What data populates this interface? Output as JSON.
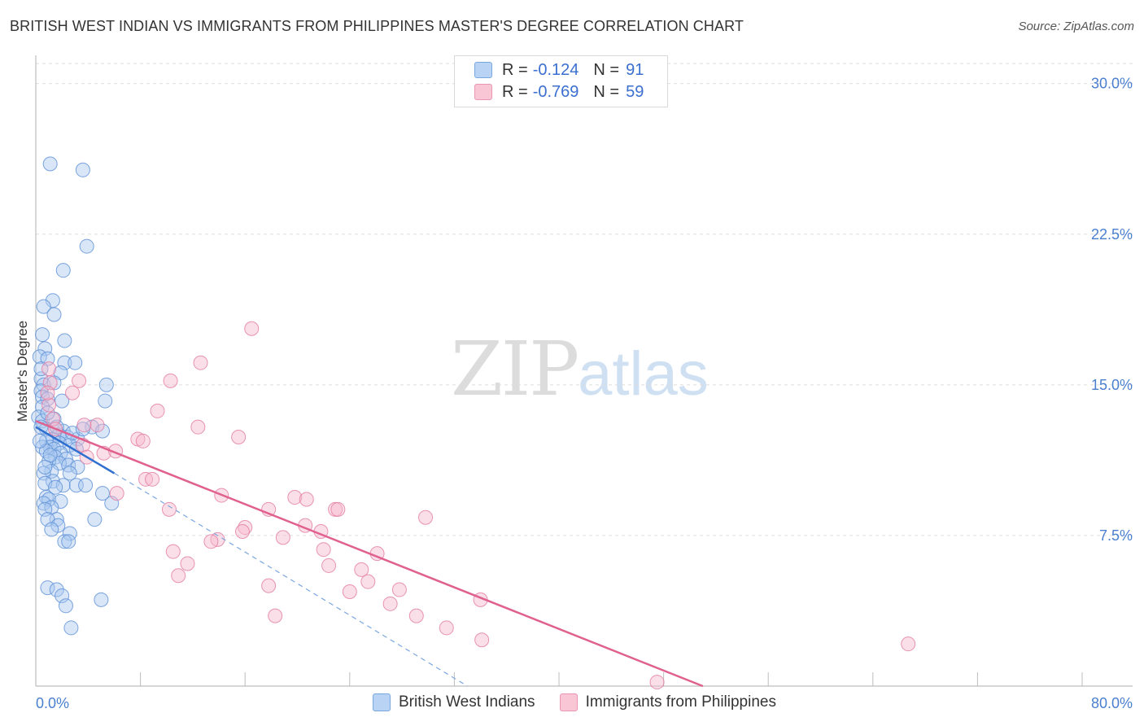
{
  "header": {
    "title": "BRITISH WEST INDIAN VS IMMIGRANTS FROM PHILIPPINES MASTER'S DEGREE CORRELATION CHART",
    "source": "Source: ZipAtlas.com"
  },
  "watermark": {
    "zip": "ZIP",
    "atlas": "atlas"
  },
  "legend_top": [
    {
      "r_label": "R =",
      "r_value": "-0.124",
      "n_label": "N =",
      "n_value": "91"
    },
    {
      "r_label": "R =",
      "r_value": "-0.769",
      "n_label": "N =",
      "n_value": "59"
    }
  ],
  "legend_bottom": [
    "British West Indians",
    "Immigrants from Philippines"
  ],
  "colors": {
    "blue_fill": "#a9c8f0",
    "blue_stroke": "#5b8fd6",
    "blue_line": "#2f6fd0",
    "pink_fill": "#f6b8cb",
    "pink_stroke": "#e27aa0",
    "pink_line": "#e0608e",
    "grid": "#dddddd",
    "tick_label": "#4a7fd0"
  },
  "chart_data": {
    "type": "scatter",
    "title": "BRITISH WEST INDIAN VS IMMIGRANTS FROM PHILIPPINES MASTER'S DEGREE CORRELATION CHART",
    "xlabel": "",
    "ylabel": "Master's Degree",
    "xlim": [
      0,
      80
    ],
    "ylim": [
      0,
      31
    ],
    "x_tick_labels": [
      "0.0%",
      "80.0%"
    ],
    "y_ticks": [
      7.5,
      15.0,
      22.5,
      30.0
    ],
    "y_tick_labels": [
      "7.5%",
      "15.0%",
      "22.5%",
      "30.0%"
    ],
    "grid": true,
    "series": [
      {
        "name": "British West Indians",
        "R": -0.124,
        "N": 91,
        "trend_solid": [
          [
            0,
            12.9
          ],
          [
            6,
            10.6
          ]
        ],
        "trend_dashed": [
          [
            6,
            10.6
          ],
          [
            33,
            0
          ]
        ],
        "points": [
          [
            1.1,
            26.0
          ],
          [
            3.6,
            25.7
          ],
          [
            3.9,
            21.9
          ],
          [
            2.1,
            20.7
          ],
          [
            1.3,
            19.2
          ],
          [
            0.6,
            18.9
          ],
          [
            1.4,
            18.5
          ],
          [
            2.2,
            17.2
          ],
          [
            0.5,
            17.5
          ],
          [
            0.7,
            16.8
          ],
          [
            0.3,
            16.4
          ],
          [
            0.9,
            16.3
          ],
          [
            2.2,
            16.1
          ],
          [
            3.0,
            16.1
          ],
          [
            1.9,
            15.6
          ],
          [
            0.4,
            15.3
          ],
          [
            0.6,
            15.0
          ],
          [
            1.4,
            15.1
          ],
          [
            5.4,
            15.0
          ],
          [
            0.4,
            14.7
          ],
          [
            0.5,
            14.4
          ],
          [
            0.9,
            14.3
          ],
          [
            5.3,
            14.2
          ],
          [
            0.5,
            13.9
          ],
          [
            0.2,
            13.4
          ],
          [
            0.5,
            13.2
          ],
          [
            1.4,
            13.3
          ],
          [
            4.3,
            12.9
          ],
          [
            0.8,
            12.8
          ],
          [
            2.1,
            12.7
          ],
          [
            5.1,
            12.7
          ],
          [
            1.8,
            12.5
          ],
          [
            1.3,
            12.3
          ],
          [
            2.4,
            12.4
          ],
          [
            3.2,
            12.3
          ],
          [
            0.8,
            12.2
          ],
          [
            1.8,
            12.1
          ],
          [
            2.6,
            12.0
          ],
          [
            1.1,
            11.9
          ],
          [
            1.4,
            11.8
          ],
          [
            3.1,
            11.8
          ],
          [
            0.5,
            11.9
          ],
          [
            0.8,
            11.7
          ],
          [
            1.9,
            11.6
          ],
          [
            1.5,
            11.4
          ],
          [
            2.3,
            11.3
          ],
          [
            1.0,
            11.2
          ],
          [
            1.8,
            11.1
          ],
          [
            2.5,
            11.0
          ],
          [
            3.2,
            10.9
          ],
          [
            1.2,
            10.7
          ],
          [
            0.6,
            10.6
          ],
          [
            2.6,
            10.6
          ],
          [
            1.3,
            10.2
          ],
          [
            0.7,
            10.1
          ],
          [
            2.1,
            10.0
          ],
          [
            3.1,
            10.0
          ],
          [
            3.8,
            10.0
          ],
          [
            5.1,
            9.6
          ],
          [
            0.8,
            9.4
          ],
          [
            1.0,
            9.3
          ],
          [
            1.9,
            9.2
          ],
          [
            5.8,
            9.1
          ],
          [
            0.6,
            9.1
          ],
          [
            1.2,
            8.9
          ],
          [
            0.7,
            8.8
          ],
          [
            1.6,
            8.3
          ],
          [
            0.9,
            8.3
          ],
          [
            4.5,
            8.3
          ],
          [
            1.7,
            8.0
          ],
          [
            1.2,
            7.8
          ],
          [
            2.6,
            7.6
          ],
          [
            2.2,
            7.2
          ],
          [
            2.5,
            7.2
          ],
          [
            0.9,
            4.9
          ],
          [
            1.6,
            4.8
          ],
          [
            2.0,
            4.5
          ],
          [
            5.0,
            4.3
          ],
          [
            2.3,
            4.0
          ],
          [
            2.7,
            2.9
          ],
          [
            0.4,
            12.9
          ],
          [
            0.9,
            13.6
          ],
          [
            1.6,
            12.9
          ],
          [
            2.8,
            12.6
          ],
          [
            1.1,
            11.5
          ],
          [
            0.4,
            15.8
          ],
          [
            2.0,
            14.2
          ],
          [
            0.7,
            10.9
          ],
          [
            3.6,
            12.8
          ],
          [
            1.5,
            9.9
          ],
          [
            0.3,
            12.2
          ]
        ]
      },
      {
        "name": "Immigrants from Philippines",
        "R": -0.769,
        "N": 59,
        "trend_solid": [
          [
            0,
            13.2
          ],
          [
            51,
            0
          ]
        ],
        "points": [
          [
            16.5,
            17.8
          ],
          [
            12.6,
            16.1
          ],
          [
            1.0,
            15.8
          ],
          [
            10.3,
            15.2
          ],
          [
            3.3,
            15.2
          ],
          [
            1.1,
            15.1
          ],
          [
            2.8,
            14.6
          ],
          [
            1.0,
            14.0
          ],
          [
            9.3,
            13.7
          ],
          [
            12.4,
            12.9
          ],
          [
            1.3,
            13.3
          ],
          [
            3.7,
            13.0
          ],
          [
            15.5,
            12.4
          ],
          [
            1.5,
            12.8
          ],
          [
            7.8,
            12.3
          ],
          [
            8.2,
            12.2
          ],
          [
            3.6,
            12.0
          ],
          [
            5.2,
            11.6
          ],
          [
            6.1,
            11.7
          ],
          [
            3.9,
            11.4
          ],
          [
            8.4,
            10.3
          ],
          [
            8.9,
            10.3
          ],
          [
            6.2,
            9.6
          ],
          [
            14.2,
            9.5
          ],
          [
            19.8,
            9.4
          ],
          [
            20.7,
            9.3
          ],
          [
            10.2,
            8.8
          ],
          [
            17.8,
            8.8
          ],
          [
            22.9,
            8.8
          ],
          [
            23.1,
            8.8
          ],
          [
            29.8,
            8.4
          ],
          [
            20.6,
            8.0
          ],
          [
            16.0,
            7.9
          ],
          [
            15.8,
            7.7
          ],
          [
            21.8,
            7.7
          ],
          [
            18.9,
            7.4
          ],
          [
            13.9,
            7.3
          ],
          [
            13.4,
            7.2
          ],
          [
            10.5,
            6.7
          ],
          [
            22.0,
            6.8
          ],
          [
            26.1,
            6.6
          ],
          [
            11.6,
            6.1
          ],
          [
            22.4,
            6.0
          ],
          [
            24.9,
            5.8
          ],
          [
            10.9,
            5.5
          ],
          [
            25.4,
            5.2
          ],
          [
            17.8,
            5.0
          ],
          [
            27.8,
            4.8
          ],
          [
            24.0,
            4.7
          ],
          [
            34.0,
            4.3
          ],
          [
            27.1,
            4.1
          ],
          [
            18.3,
            3.5
          ],
          [
            29.1,
            3.5
          ],
          [
            31.4,
            2.9
          ],
          [
            34.1,
            2.3
          ],
          [
            66.7,
            2.1
          ],
          [
            47.5,
            0.2
          ],
          [
            0.9,
            14.6
          ],
          [
            4.7,
            13.0
          ]
        ]
      }
    ]
  }
}
